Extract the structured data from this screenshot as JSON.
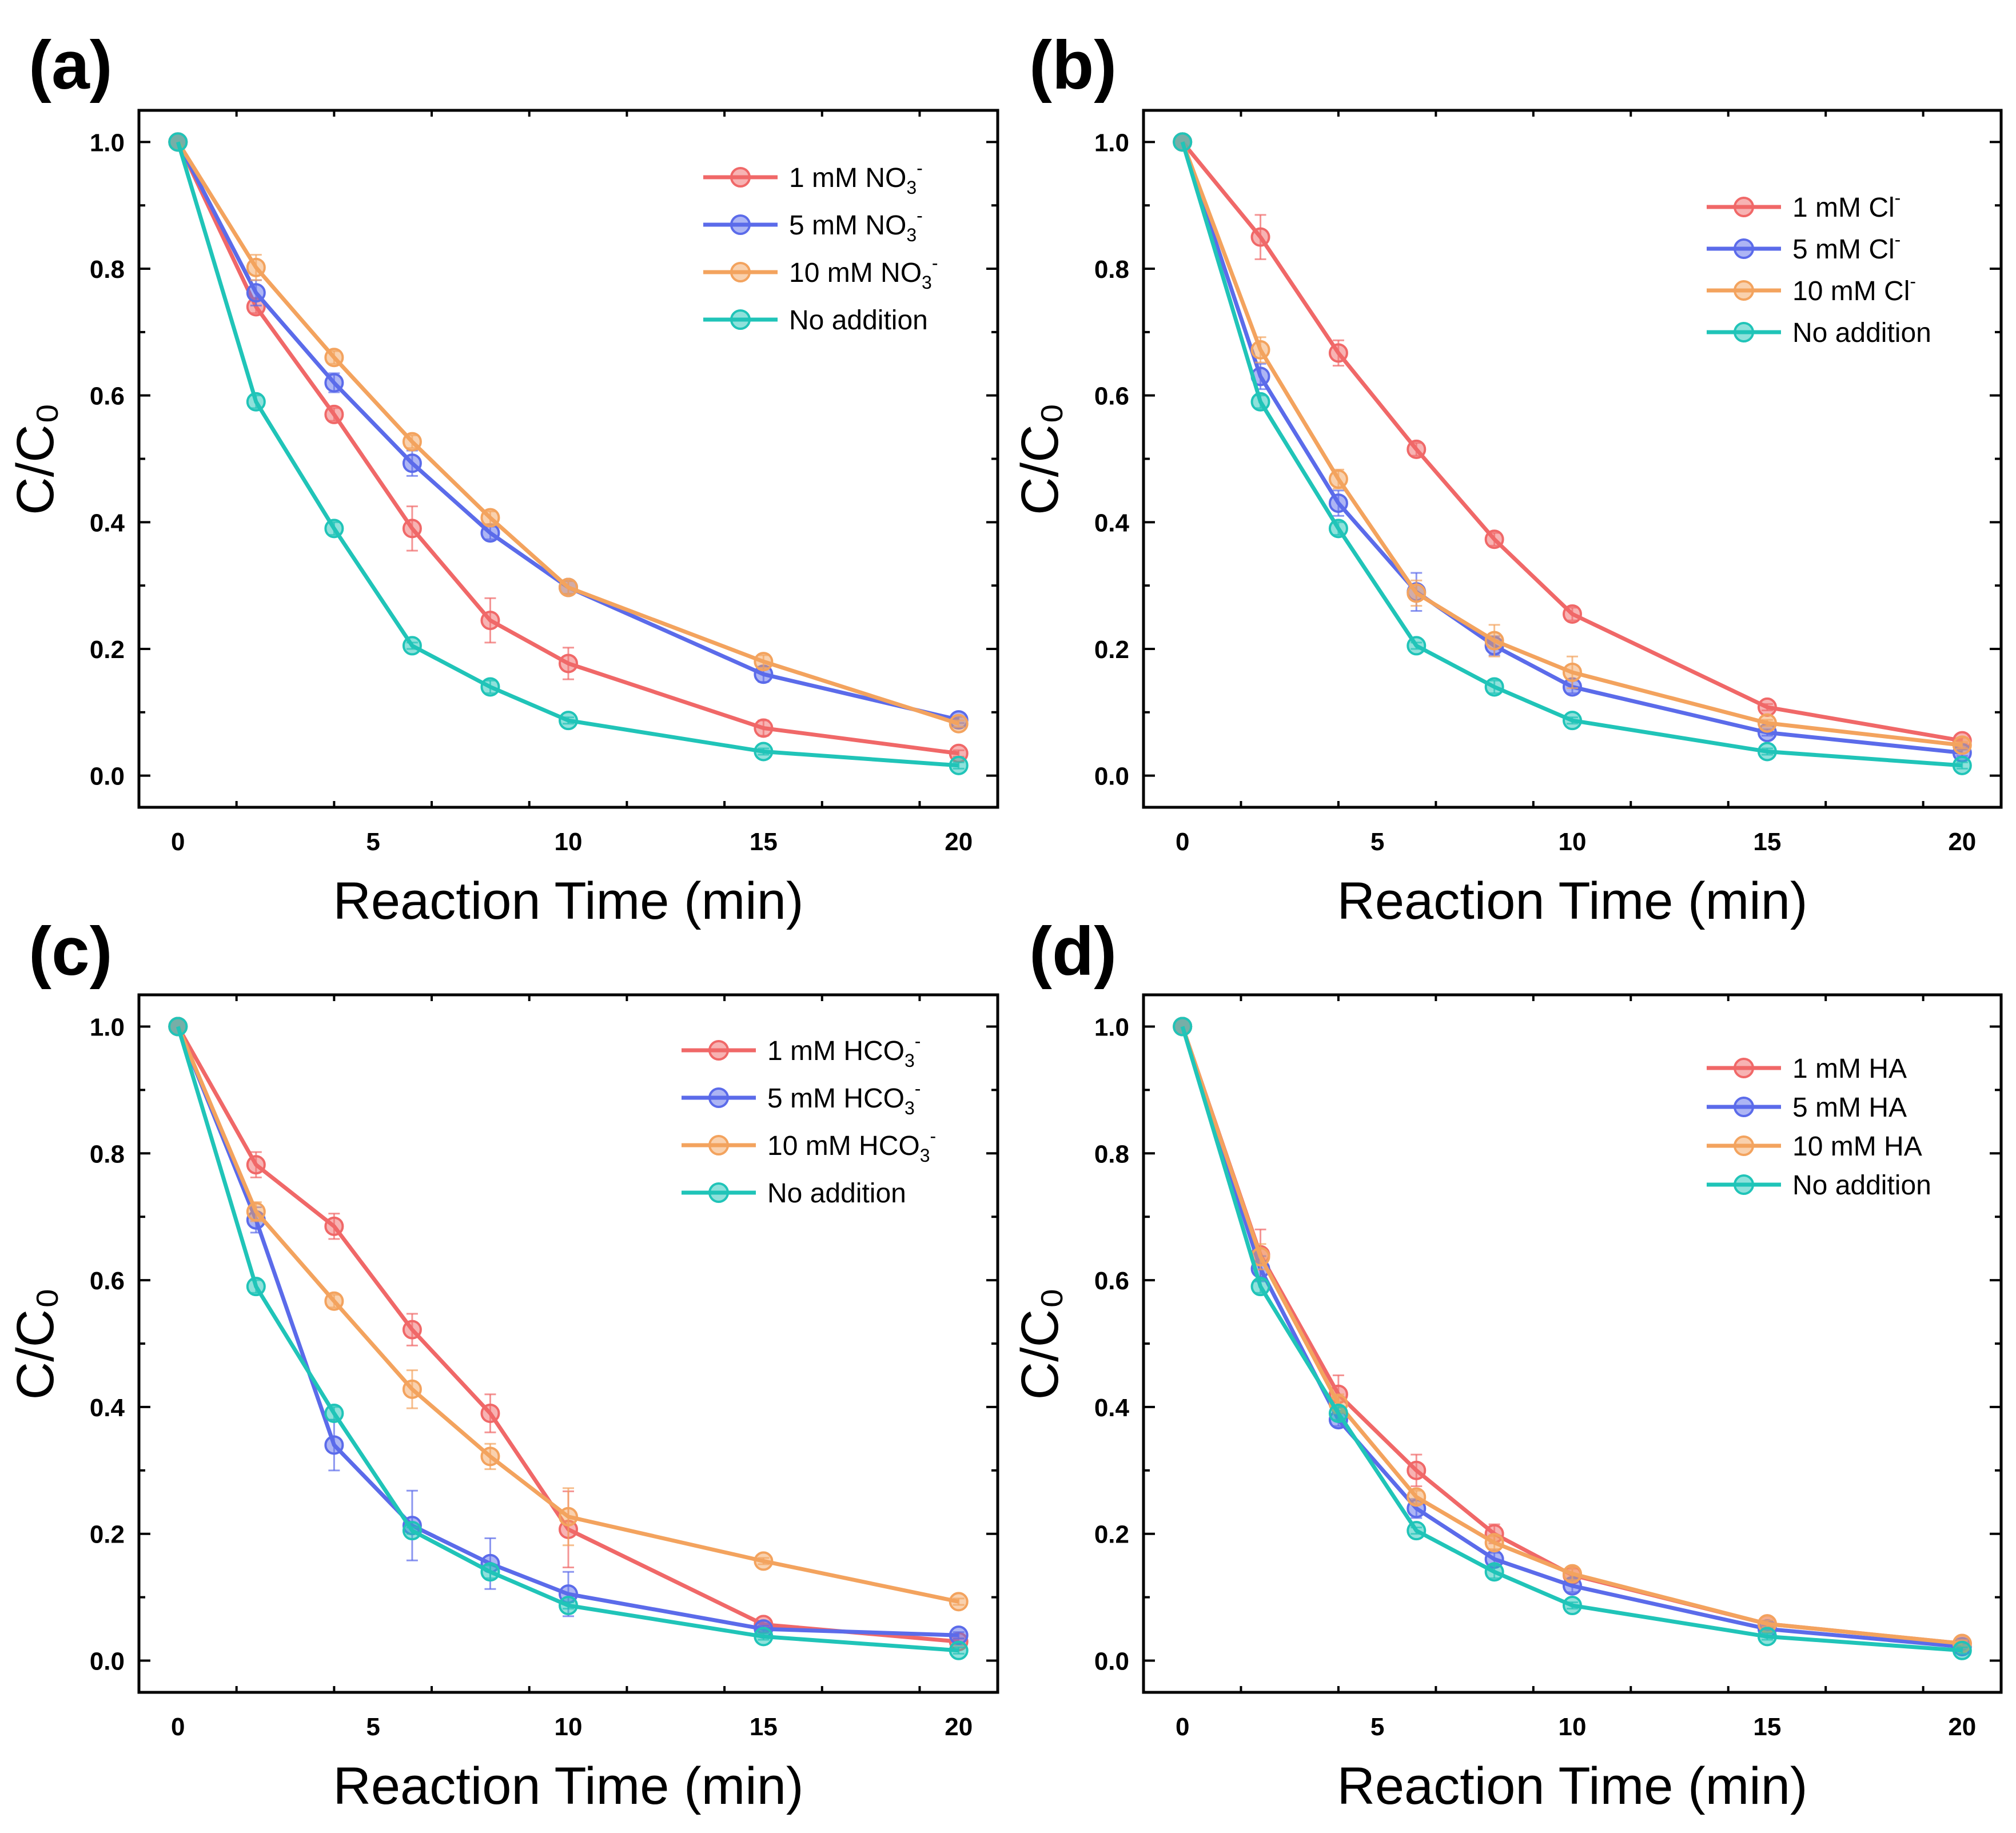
{
  "figure_title": "",
  "chart_data": [
    {
      "type": "line",
      "panel_label": "(a)",
      "xlabel": "Reaction Time (min)",
      "ylabel": "C/C₀",
      "xlim": [
        -1,
        21
      ],
      "ylim": [
        -0.05,
        1.05
      ],
      "xticks": [
        0,
        5,
        10,
        15,
        20
      ],
      "yticks": [
        0.0,
        0.2,
        0.4,
        0.6,
        0.8,
        1.0
      ],
      "grid": false,
      "legend_position": "top-right",
      "x": [
        0,
        2,
        4,
        6,
        8,
        10,
        15,
        20
      ],
      "series": [
        {
          "name": "1 mM NO",
          "sub": "3",
          "sup": "-",
          "color": "#F06868",
          "values": [
            1.0,
            0.74,
            0.57,
            0.39,
            0.245,
            0.177,
            0.075,
            0.035
          ],
          "errors": [
            0,
            0.01,
            0.01,
            0.035,
            0.035,
            0.025,
            0.012,
            0.005
          ]
        },
        {
          "name": "5 mM NO",
          "sub": "3",
          "sup": "-",
          "color": "#5B6BEA",
          "values": [
            1.0,
            0.762,
            0.62,
            0.493,
            0.383,
            0.297,
            0.16,
            0.088
          ],
          "errors": [
            0,
            0.02,
            0.015,
            0.02,
            0.01,
            0.01,
            0.012,
            0.005
          ]
        },
        {
          "name": "10 mM NO",
          "sub": "3",
          "sup": "-",
          "color": "#F3A35E",
          "values": [
            1.0,
            0.802,
            0.66,
            0.527,
            0.407,
            0.297,
            0.18,
            0.082
          ],
          "errors": [
            0,
            0.02,
            0.01,
            0.01,
            0.01,
            0.01,
            0.01,
            0.005
          ]
        },
        {
          "name": "No addition",
          "sub": "",
          "sup": "",
          "color": "#20C4B8",
          "values": [
            1.0,
            0.59,
            0.39,
            0.205,
            0.14,
            0.087,
            0.038,
            0.016
          ],
          "errors": [
            0,
            0.01,
            0.01,
            0.005,
            0.01,
            0.005,
            0.005,
            0.005
          ]
        }
      ]
    },
    {
      "type": "line",
      "panel_label": "(b)",
      "xlabel": "Reaction Time (min)",
      "ylabel": "C/C₀",
      "xlim": [
        -1,
        21
      ],
      "ylim": [
        -0.05,
        1.05
      ],
      "xticks": [
        0,
        5,
        10,
        15,
        20
      ],
      "yticks": [
        0.0,
        0.2,
        0.4,
        0.6,
        0.8,
        1.0
      ],
      "grid": false,
      "legend_position": "top-right",
      "x": [
        0,
        2,
        4,
        6,
        8,
        10,
        15,
        20
      ],
      "series": [
        {
          "name": "1 mM Cl",
          "sub": "",
          "sup": "-",
          "color": "#F06868",
          "values": [
            1.0,
            0.85,
            0.667,
            0.515,
            0.373,
            0.255,
            0.108,
            0.055
          ],
          "errors": [
            0,
            0.035,
            0.02,
            0.01,
            0.01,
            0.01,
            0.005,
            0.005
          ]
        },
        {
          "name": "5 mM Cl",
          "sub": "",
          "sup": "-",
          "color": "#5B6BEA",
          "values": [
            1.0,
            0.63,
            0.43,
            0.29,
            0.205,
            0.14,
            0.068,
            0.036
          ],
          "errors": [
            0,
            0.02,
            0.02,
            0.03,
            0.015,
            0.01,
            0.005,
            0.005
          ]
        },
        {
          "name": "10 mM Cl",
          "sub": "",
          "sup": "-",
          "color": "#F3A35E",
          "values": [
            1.0,
            0.672,
            0.468,
            0.288,
            0.213,
            0.163,
            0.083,
            0.048
          ],
          "errors": [
            0,
            0.02,
            0.015,
            0.02,
            0.025,
            0.025,
            0.005,
            0.005
          ]
        },
        {
          "name": "No addition",
          "sub": "",
          "sup": "",
          "color": "#20C4B8",
          "values": [
            1.0,
            0.59,
            0.39,
            0.205,
            0.14,
            0.087,
            0.038,
            0.016
          ],
          "errors": [
            0,
            0.01,
            0.01,
            0.005,
            0.01,
            0.005,
            0.005,
            0.005
          ]
        }
      ]
    },
    {
      "type": "line",
      "panel_label": "(c)",
      "xlabel": "Reaction Time (min)",
      "ylabel": "C/C₀",
      "xlim": [
        -1,
        21
      ],
      "ylim": [
        -0.05,
        1.05
      ],
      "xticks": [
        0,
        5,
        10,
        15,
        20
      ],
      "yticks": [
        0.0,
        0.2,
        0.4,
        0.6,
        0.8,
        1.0
      ],
      "grid": false,
      "legend_position": "top-right",
      "x": [
        0,
        2,
        4,
        6,
        8,
        10,
        15,
        20
      ],
      "series": [
        {
          "name": "1 mM HCO",
          "sub": "3",
          "sup": "-",
          "color": "#F06868",
          "values": [
            1.0,
            0.782,
            0.685,
            0.522,
            0.39,
            0.207,
            0.057,
            0.03
          ],
          "errors": [
            0,
            0.02,
            0.02,
            0.025,
            0.03,
            0.06,
            0.005,
            0.005
          ]
        },
        {
          "name": "5 mM HCO",
          "sub": "3",
          "sup": "-",
          "color": "#5B6BEA",
          "values": [
            1.0,
            0.695,
            0.34,
            0.213,
            0.153,
            0.105,
            0.05,
            0.04
          ],
          "errors": [
            0,
            0.02,
            0.04,
            0.055,
            0.04,
            0.035,
            0.005,
            0.005
          ]
        },
        {
          "name": "10 mM HCO",
          "sub": "3",
          "sup": "-",
          "color": "#F3A35E",
          "values": [
            1.0,
            0.708,
            0.567,
            0.428,
            0.322,
            0.227,
            0.157,
            0.093
          ],
          "errors": [
            0,
            0.015,
            0.01,
            0.03,
            0.02,
            0.045,
            0.005,
            0.005
          ]
        },
        {
          "name": "No addition",
          "sub": "",
          "sup": "",
          "color": "#20C4B8",
          "values": [
            1.0,
            0.59,
            0.39,
            0.205,
            0.14,
            0.087,
            0.038,
            0.016
          ],
          "errors": [
            0,
            0.01,
            0.01,
            0.005,
            0.01,
            0.005,
            0.005,
            0.005
          ]
        }
      ]
    },
    {
      "type": "line",
      "panel_label": "(d)",
      "xlabel": "Reaction Time (min)",
      "ylabel": "C/C₀",
      "xlim": [
        -1,
        21
      ],
      "ylim": [
        -0.05,
        1.05
      ],
      "xticks": [
        0,
        5,
        10,
        15,
        20
      ],
      "yticks": [
        0.0,
        0.2,
        0.4,
        0.6,
        0.8,
        1.0
      ],
      "grid": false,
      "legend_position": "top-right",
      "x": [
        0,
        2,
        4,
        6,
        8,
        10,
        15,
        20
      ],
      "series": [
        {
          "name": "1 mM HA",
          "sub": "",
          "sup": "",
          "color": "#F06868",
          "values": [
            1.0,
            0.64,
            0.42,
            0.3,
            0.2,
            0.135,
            0.058,
            0.027
          ],
          "errors": [
            0,
            0.04,
            0.03,
            0.025,
            0.015,
            0.01,
            0.005,
            0.005
          ]
        },
        {
          "name": "5 mM HA",
          "sub": "",
          "sup": "",
          "color": "#5B6BEA",
          "values": [
            1.0,
            0.618,
            0.38,
            0.24,
            0.16,
            0.118,
            0.05,
            0.022
          ],
          "errors": [
            0,
            0.02,
            0.01,
            0.015,
            0.01,
            0.01,
            0.005,
            0.005
          ]
        },
        {
          "name": "10 mM HA",
          "sub": "",
          "sup": "",
          "color": "#F3A35E",
          "values": [
            1.0,
            0.637,
            0.405,
            0.258,
            0.186,
            0.137,
            0.058,
            0.027
          ],
          "errors": [
            0,
            0.02,
            0.015,
            0.01,
            0.01,
            0.01,
            0.005,
            0.005
          ]
        },
        {
          "name": "No addition",
          "sub": "",
          "sup": "",
          "color": "#20C4B8",
          "values": [
            1.0,
            0.59,
            0.39,
            0.205,
            0.14,
            0.087,
            0.038,
            0.016
          ],
          "errors": [
            0,
            0.01,
            0.01,
            0.005,
            0.01,
            0.005,
            0.005,
            0.005
          ]
        }
      ]
    }
  ]
}
